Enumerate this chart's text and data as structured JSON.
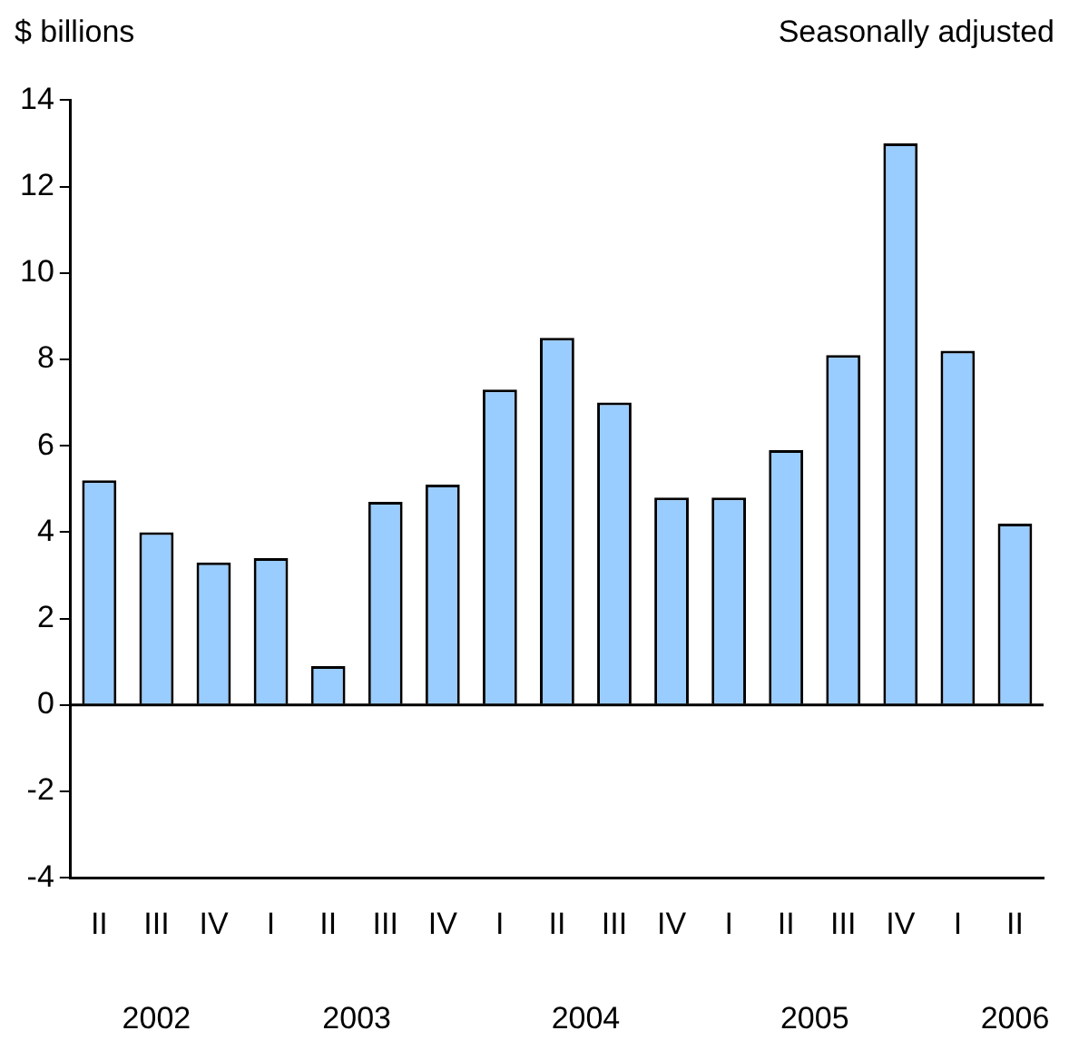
{
  "chart_data": {
    "type": "bar",
    "ylabel": "$ billions",
    "subtitle": "Seasonally adjusted",
    "categories": [
      "II",
      "III",
      "IV",
      "I",
      "II",
      "III",
      "IV",
      "I",
      "II",
      "III",
      "IV",
      "I",
      "II",
      "III",
      "IV",
      "I",
      "II"
    ],
    "values": [
      5.2,
      4.0,
      3.3,
      3.4,
      0.9,
      4.7,
      5.1,
      7.3,
      8.5,
      7.0,
      4.8,
      4.8,
      5.9,
      8.1,
      13.0,
      8.2,
      4.2
    ],
    "color": "#99ccff",
    "ylim": [
      -4,
      14
    ],
    "yticks": [
      -4,
      -2,
      0,
      2,
      4,
      6,
      8,
      10,
      12,
      14
    ],
    "grid": false,
    "legend": false,
    "ref_lines": [
      {
        "axis": "y",
        "value": 0,
        "color": "#000000"
      }
    ],
    "annotations": [
      "2002",
      "2003",
      "2004",
      "2005",
      "2006"
    ]
  }
}
